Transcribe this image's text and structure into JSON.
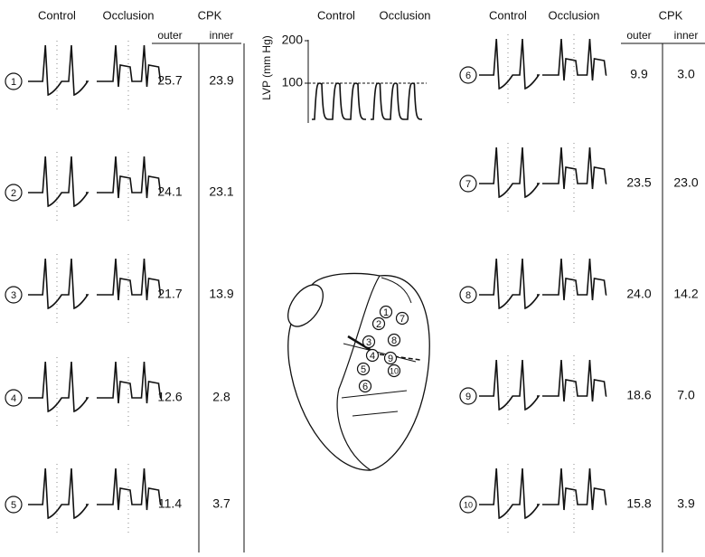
{
  "left_panel": {
    "headers": {
      "control": "Control",
      "occlusion": "Occlusion",
      "cpk": "CPK",
      "outer": "outer",
      "inner": "inner"
    },
    "rows": [
      {
        "site": "1",
        "outer": "25.7",
        "inner": "23.9"
      },
      {
        "site": "2",
        "outer": "24.1",
        "inner": "23.1"
      },
      {
        "site": "3",
        "outer": "21.7",
        "inner": "13.9"
      },
      {
        "site": "4",
        "outer": "12.6",
        "inner": "2.8"
      },
      {
        "site": "5",
        "outer": "11.4",
        "inner": "3.7"
      }
    ]
  },
  "lvp_panel": {
    "headers": {
      "control": "Control",
      "occlusion": "Occlusion"
    },
    "axis_label": "LVP (mm Hg)",
    "ticks": [
      "200",
      "100"
    ]
  },
  "heart_diagram": {
    "sites": [
      "1",
      "2",
      "3",
      "4",
      "5",
      "6",
      "7",
      "8",
      "9",
      "10"
    ]
  },
  "right_panel": {
    "headers": {
      "control": "Control",
      "occlusion": "Occlusion",
      "cpk": "CPK",
      "outer": "outer",
      "inner": "inner"
    },
    "rows": [
      {
        "site": "6",
        "outer": "9.9",
        "inner": "3.0"
      },
      {
        "site": "7",
        "outer": "23.5",
        "inner": "23.0"
      },
      {
        "site": "8",
        "outer": "24.0",
        "inner": "14.2"
      },
      {
        "site": "9",
        "outer": "18.6",
        "inner": "7.0"
      },
      {
        "site": "10",
        "outer": "15.8",
        "inner": "3.9"
      }
    ]
  }
}
